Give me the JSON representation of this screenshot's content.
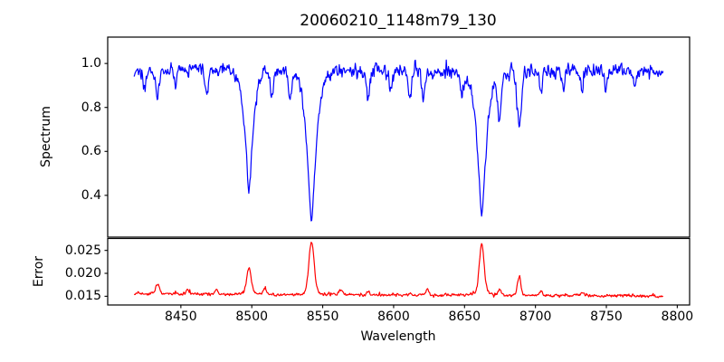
{
  "figure": {
    "title": "20060210_1148m79_130",
    "background": "#ffffff",
    "spine_color": "#000000"
  },
  "chart_data": {
    "type": "line",
    "title": "20060210_1148m79_130",
    "xlabel": "Wavelength",
    "x_start": 8417,
    "x_end": 8790,
    "n_points": 960,
    "xlim": [
      8398.4,
      8808.7
    ],
    "xticks": [
      {
        "v": 8450,
        "label": "8450"
      },
      {
        "v": 8500,
        "label": "8500"
      },
      {
        "v": 8550,
        "label": "8550"
      },
      {
        "v": 8600,
        "label": "8600"
      },
      {
        "v": 8650,
        "label": "8650"
      },
      {
        "v": 8700,
        "label": "8700"
      },
      {
        "v": 8750,
        "label": "8750"
      },
      {
        "v": 8800,
        "label": "8800"
      }
    ],
    "legend": "none",
    "grid": false,
    "seed": 20060210,
    "panels": [
      {
        "name": "spectrum",
        "ylabel": "Spectrum",
        "color": "#0000ff",
        "ylim": [
          0.21,
          1.12
        ],
        "yticks": [
          {
            "v": 0.4,
            "label": "0.4"
          },
          {
            "v": 0.6,
            "label": "0.6"
          },
          {
            "v": 0.8,
            "label": "0.8"
          },
          {
            "v": 1.0,
            "label": "1.0"
          }
        ],
        "continuum": 0.963,
        "noise_sigma": 0.018,
        "absorption_lines": [
          {
            "center": 8424.5,
            "depth": 0.09,
            "width": 1.0,
            "profile": "gauss"
          },
          {
            "center": 8433.5,
            "depth": 0.14,
            "width": 1.3,
            "profile": "gauss"
          },
          {
            "center": 8446.0,
            "depth": 0.07,
            "width": 1.0,
            "profile": "gauss"
          },
          {
            "center": 8468.0,
            "depth": 0.11,
            "width": 1.2,
            "profile": "gauss"
          },
          {
            "center": 8498.02,
            "depth": 0.57,
            "width": 4.0,
            "profile": "voigt"
          },
          {
            "center": 8514.0,
            "depth": 0.12,
            "width": 1.1,
            "profile": "gauss"
          },
          {
            "center": 8527.0,
            "depth": 0.12,
            "width": 1.1,
            "profile": "gauss"
          },
          {
            "center": 8542.09,
            "depth": 0.72,
            "width": 4.4,
            "profile": "voigt"
          },
          {
            "center": 8582.0,
            "depth": 0.12,
            "width": 1.1,
            "profile": "gauss"
          },
          {
            "center": 8598.0,
            "depth": 0.09,
            "width": 1.0,
            "profile": "gauss"
          },
          {
            "center": 8611.5,
            "depth": 0.13,
            "width": 1.1,
            "profile": "gauss"
          },
          {
            "center": 8621.0,
            "depth": 0.13,
            "width": 1.1,
            "profile": "gauss"
          },
          {
            "center": 8648.0,
            "depth": 0.09,
            "width": 1.0,
            "profile": "gauss"
          },
          {
            "center": 8662.14,
            "depth": 0.69,
            "width": 4.2,
            "profile": "voigt"
          },
          {
            "center": 8674.7,
            "depth": 0.2,
            "width": 1.3,
            "profile": "gauss"
          },
          {
            "center": 8688.6,
            "depth": 0.26,
            "width": 1.5,
            "profile": "gauss"
          },
          {
            "center": 8704.0,
            "depth": 0.1,
            "width": 1.0,
            "profile": "gauss"
          },
          {
            "center": 8720.0,
            "depth": 0.09,
            "width": 1.0,
            "profile": "gauss"
          },
          {
            "center": 8733.0,
            "depth": 0.1,
            "width": 1.0,
            "profile": "gauss"
          },
          {
            "center": 8750.0,
            "depth": 0.09,
            "width": 1.0,
            "profile": "gauss"
          },
          {
            "center": 8770.0,
            "depth": 0.08,
            "width": 1.0,
            "profile": "gauss"
          }
        ]
      },
      {
        "name": "error",
        "ylabel": "Error",
        "color": "#ff0000",
        "ylim": [
          0.0131,
          0.0276
        ],
        "yticks": [
          {
            "v": 0.015,
            "label": "0.015"
          },
          {
            "v": 0.02,
            "label": "0.020"
          },
          {
            "v": 0.025,
            "label": "0.025"
          }
        ],
        "baseline_start": 0.01555,
        "baseline_end": 0.01505,
        "noise_sigma": 0.00018,
        "peaks": [
          {
            "center": 8433.5,
            "height": 0.0019,
            "width": 1.3
          },
          {
            "center": 8455.0,
            "height": 0.0008,
            "width": 1.0
          },
          {
            "center": 8475.0,
            "height": 0.0007,
            "width": 1.0
          },
          {
            "center": 8498.0,
            "height": 0.0053,
            "width": 1.6
          },
          {
            "center": 8509.0,
            "height": 0.001,
            "width": 1.1
          },
          {
            "center": 8542.1,
            "height": 0.011,
            "width": 1.8
          },
          {
            "center": 8563.0,
            "height": 0.001,
            "width": 1.1
          },
          {
            "center": 8582.0,
            "height": 0.0008,
            "width": 1.0
          },
          {
            "center": 8624.0,
            "height": 0.0012,
            "width": 1.1
          },
          {
            "center": 8662.1,
            "height": 0.0106,
            "width": 1.7
          },
          {
            "center": 8674.7,
            "height": 0.0012,
            "width": 1.1
          },
          {
            "center": 8688.6,
            "height": 0.0038,
            "width": 1.2
          },
          {
            "center": 8704.0,
            "height": 0.0008,
            "width": 1.0
          },
          {
            "center": 8733.0,
            "height": 0.0007,
            "width": 1.0
          }
        ]
      }
    ]
  }
}
